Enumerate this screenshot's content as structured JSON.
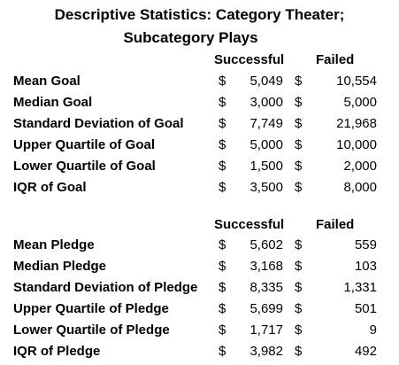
{
  "title_line1": "Descriptive Statistics: Category Theater;",
  "title_line2": "Subcategory Plays",
  "goal_section": {
    "header_successful": "Successful",
    "header_failed": "Failed",
    "rows": [
      {
        "label": "Mean Goal",
        "cur1": "$",
        "successful": "5,049",
        "cur2": "$",
        "failed": "10,554"
      },
      {
        "label": "Median Goal",
        "cur1": "$",
        "successful": "3,000",
        "cur2": "$",
        "failed": "5,000"
      },
      {
        "label": "Standard Deviation of Goal",
        "cur1": "$",
        "successful": "7,749",
        "cur2": "$",
        "failed": "21,968"
      },
      {
        "label": "Upper Quartile of Goal",
        "cur1": "$",
        "successful": "5,000",
        "cur2": "$",
        "failed": "10,000"
      },
      {
        "label": "Lower Quartile of Goal",
        "cur1": "$",
        "successful": "1,500",
        "cur2": "$",
        "failed": "2,000"
      },
      {
        "label": "IQR of Goal",
        "cur1": "$",
        "successful": "3,500",
        "cur2": "$",
        "failed": "8,000"
      }
    ]
  },
  "pledge_section": {
    "header_successful": "Successful",
    "header_failed": "Failed",
    "rows": [
      {
        "label": "Mean Pledge",
        "cur1": "$",
        "successful": "5,602",
        "cur2": "$",
        "failed": "559"
      },
      {
        "label": "Median Pledge",
        "cur1": "$",
        "successful": "3,168",
        "cur2": "$",
        "failed": "103"
      },
      {
        "label": "Standard Deviation of Pledge",
        "cur1": "$",
        "successful": "8,335",
        "cur2": "$",
        "failed": "1,331"
      },
      {
        "label": "Upper Quartile of Pledge",
        "cur1": "$",
        "successful": "5,699",
        "cur2": "$",
        "failed": "501"
      },
      {
        "label": "Lower Quartile of Pledge",
        "cur1": "$",
        "successful": "1,717",
        "cur2": "$",
        "failed": "9"
      },
      {
        "label": "IQR of Pledge",
        "cur1": "$",
        "successful": "3,982",
        "cur2": "$",
        "failed": "492"
      }
    ]
  }
}
